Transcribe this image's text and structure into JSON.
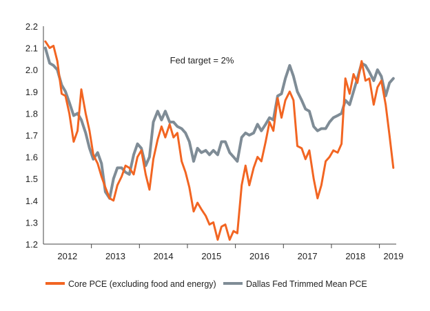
{
  "chart_data": {
    "type": "line",
    "title": "",
    "xlabel": "",
    "ylabel": "",
    "ylim": [
      1.2,
      2.2
    ],
    "xlim": [
      2011.75,
      2019.1
    ],
    "yticks": [
      "1.2",
      "1.3",
      "1.4",
      "1.5",
      "1.6",
      "1.7",
      "1.8",
      "1.9",
      "2.0",
      "2.1",
      "2.2"
    ],
    "xticks": [
      "2012",
      "2013",
      "2014",
      "2015",
      "2016",
      "2017",
      "2018",
      "2019"
    ],
    "grid": false,
    "legend_position": "bottom",
    "annotation": "Fed target = 2%",
    "series": [
      {
        "name": "Core PCE (excluding food and energy)",
        "color": "#F26522",
        "points": [
          [
            2011.79,
            2.13
          ],
          [
            2011.88,
            2.1
          ],
          [
            2011.96,
            2.11
          ],
          [
            2012.04,
            2.04
          ],
          [
            2012.13,
            1.89
          ],
          [
            2012.21,
            1.88
          ],
          [
            2012.29,
            1.8
          ],
          [
            2012.38,
            1.67
          ],
          [
            2012.46,
            1.72
          ],
          [
            2012.54,
            1.91
          ],
          [
            2012.63,
            1.8
          ],
          [
            2012.71,
            1.72
          ],
          [
            2012.79,
            1.61
          ],
          [
            2012.88,
            1.57
          ],
          [
            2012.96,
            1.51
          ],
          [
            2013.04,
            1.46
          ],
          [
            2013.13,
            1.41
          ],
          [
            2013.21,
            1.4
          ],
          [
            2013.29,
            1.47
          ],
          [
            2013.38,
            1.51
          ],
          [
            2013.46,
            1.56
          ],
          [
            2013.54,
            1.55
          ],
          [
            2013.63,
            1.52
          ],
          [
            2013.71,
            1.6
          ],
          [
            2013.79,
            1.63
          ],
          [
            2013.88,
            1.52
          ],
          [
            2013.96,
            1.45
          ],
          [
            2014.04,
            1.59
          ],
          [
            2014.13,
            1.68
          ],
          [
            2014.21,
            1.74
          ],
          [
            2014.29,
            1.69
          ],
          [
            2014.38,
            1.75
          ],
          [
            2014.46,
            1.69
          ],
          [
            2014.54,
            1.71
          ],
          [
            2014.63,
            1.58
          ],
          [
            2014.71,
            1.53
          ],
          [
            2014.79,
            1.46
          ],
          [
            2014.88,
            1.35
          ],
          [
            2014.96,
            1.39
          ],
          [
            2015.04,
            1.36
          ],
          [
            2015.13,
            1.33
          ],
          [
            2015.21,
            1.29
          ],
          [
            2015.29,
            1.3
          ],
          [
            2015.38,
            1.22
          ],
          [
            2015.46,
            1.28
          ],
          [
            2015.54,
            1.29
          ],
          [
            2015.63,
            1.22
          ],
          [
            2015.71,
            1.26
          ],
          [
            2015.79,
            1.25
          ],
          [
            2015.88,
            1.47
          ],
          [
            2015.96,
            1.56
          ],
          [
            2016.04,
            1.47
          ],
          [
            2016.13,
            1.55
          ],
          [
            2016.21,
            1.6
          ],
          [
            2016.29,
            1.58
          ],
          [
            2016.38,
            1.67
          ],
          [
            2016.46,
            1.76
          ],
          [
            2016.54,
            1.72
          ],
          [
            2016.63,
            1.87
          ],
          [
            2016.71,
            1.78
          ],
          [
            2016.79,
            1.86
          ],
          [
            2016.88,
            1.9
          ],
          [
            2016.96,
            1.86
          ],
          [
            2017.04,
            1.65
          ],
          [
            2017.13,
            1.64
          ],
          [
            2017.21,
            1.59
          ],
          [
            2017.29,
            1.63
          ],
          [
            2017.38,
            1.5
          ],
          [
            2017.46,
            1.41
          ],
          [
            2017.54,
            1.47
          ],
          [
            2017.63,
            1.58
          ],
          [
            2017.71,
            1.6
          ],
          [
            2017.79,
            1.63
          ],
          [
            2017.88,
            1.62
          ],
          [
            2017.96,
            1.66
          ],
          [
            2018.04,
            1.96
          ],
          [
            2018.13,
            1.89
          ],
          [
            2018.21,
            1.98
          ],
          [
            2018.29,
            1.94
          ],
          [
            2018.38,
            2.04
          ],
          [
            2018.46,
            1.95
          ],
          [
            2018.54,
            1.96
          ],
          [
            2018.63,
            1.84
          ],
          [
            2018.71,
            1.92
          ],
          [
            2018.79,
            1.95
          ],
          [
            2018.88,
            1.84
          ],
          [
            2018.96,
            1.7
          ],
          [
            2019.04,
            1.55
          ]
        ]
      },
      {
        "name": "Dallas Fed Trimmed Mean PCE",
        "color": "#7F8C96",
        "points": [
          [
            2011.79,
            2.1
          ],
          [
            2011.88,
            2.03
          ],
          [
            2011.96,
            2.02
          ],
          [
            2012.04,
            2.0
          ],
          [
            2012.13,
            1.93
          ],
          [
            2012.21,
            1.9
          ],
          [
            2012.29,
            1.85
          ],
          [
            2012.38,
            1.79
          ],
          [
            2012.46,
            1.8
          ],
          [
            2012.54,
            1.77
          ],
          [
            2012.63,
            1.71
          ],
          [
            2012.71,
            1.64
          ],
          [
            2012.79,
            1.59
          ],
          [
            2012.88,
            1.62
          ],
          [
            2012.96,
            1.57
          ],
          [
            2013.04,
            1.44
          ],
          [
            2013.13,
            1.41
          ],
          [
            2013.21,
            1.5
          ],
          [
            2013.29,
            1.55
          ],
          [
            2013.38,
            1.55
          ],
          [
            2013.46,
            1.53
          ],
          [
            2013.54,
            1.52
          ],
          [
            2013.63,
            1.61
          ],
          [
            2013.71,
            1.66
          ],
          [
            2013.79,
            1.64
          ],
          [
            2013.88,
            1.56
          ],
          [
            2013.96,
            1.6
          ],
          [
            2014.04,
            1.76
          ],
          [
            2014.13,
            1.81
          ],
          [
            2014.21,
            1.77
          ],
          [
            2014.29,
            1.81
          ],
          [
            2014.38,
            1.76
          ],
          [
            2014.46,
            1.76
          ],
          [
            2014.54,
            1.74
          ],
          [
            2014.63,
            1.73
          ],
          [
            2014.71,
            1.71
          ],
          [
            2014.79,
            1.67
          ],
          [
            2014.88,
            1.58
          ],
          [
            2014.96,
            1.64
          ],
          [
            2015.04,
            1.62
          ],
          [
            2015.13,
            1.63
          ],
          [
            2015.21,
            1.61
          ],
          [
            2015.29,
            1.63
          ],
          [
            2015.38,
            1.61
          ],
          [
            2015.46,
            1.67
          ],
          [
            2015.54,
            1.67
          ],
          [
            2015.63,
            1.62
          ],
          [
            2015.71,
            1.6
          ],
          [
            2015.79,
            1.58
          ],
          [
            2015.88,
            1.69
          ],
          [
            2015.96,
            1.71
          ],
          [
            2016.04,
            1.7
          ],
          [
            2016.13,
            1.71
          ],
          [
            2016.21,
            1.75
          ],
          [
            2016.29,
            1.72
          ],
          [
            2016.38,
            1.75
          ],
          [
            2016.46,
            1.78
          ],
          [
            2016.54,
            1.77
          ],
          [
            2016.63,
            1.88
          ],
          [
            2016.71,
            1.89
          ],
          [
            2016.79,
            1.96
          ],
          [
            2016.88,
            2.02
          ],
          [
            2016.96,
            1.97
          ],
          [
            2017.04,
            1.9
          ],
          [
            2017.13,
            1.86
          ],
          [
            2017.21,
            1.82
          ],
          [
            2017.29,
            1.81
          ],
          [
            2017.38,
            1.74
          ],
          [
            2017.46,
            1.72
          ],
          [
            2017.54,
            1.73
          ],
          [
            2017.63,
            1.73
          ],
          [
            2017.71,
            1.76
          ],
          [
            2017.79,
            1.78
          ],
          [
            2017.88,
            1.79
          ],
          [
            2017.96,
            1.8
          ],
          [
            2018.04,
            1.86
          ],
          [
            2018.13,
            1.84
          ],
          [
            2018.21,
            1.9
          ],
          [
            2018.29,
            1.96
          ],
          [
            2018.38,
            2.03
          ],
          [
            2018.46,
            2.02
          ],
          [
            2018.54,
            1.99
          ],
          [
            2018.63,
            1.95
          ],
          [
            2018.71,
            2.0
          ],
          [
            2018.79,
            1.97
          ],
          [
            2018.88,
            1.88
          ],
          [
            2018.96,
            1.94
          ],
          [
            2019.04,
            1.96
          ]
        ]
      }
    ]
  }
}
